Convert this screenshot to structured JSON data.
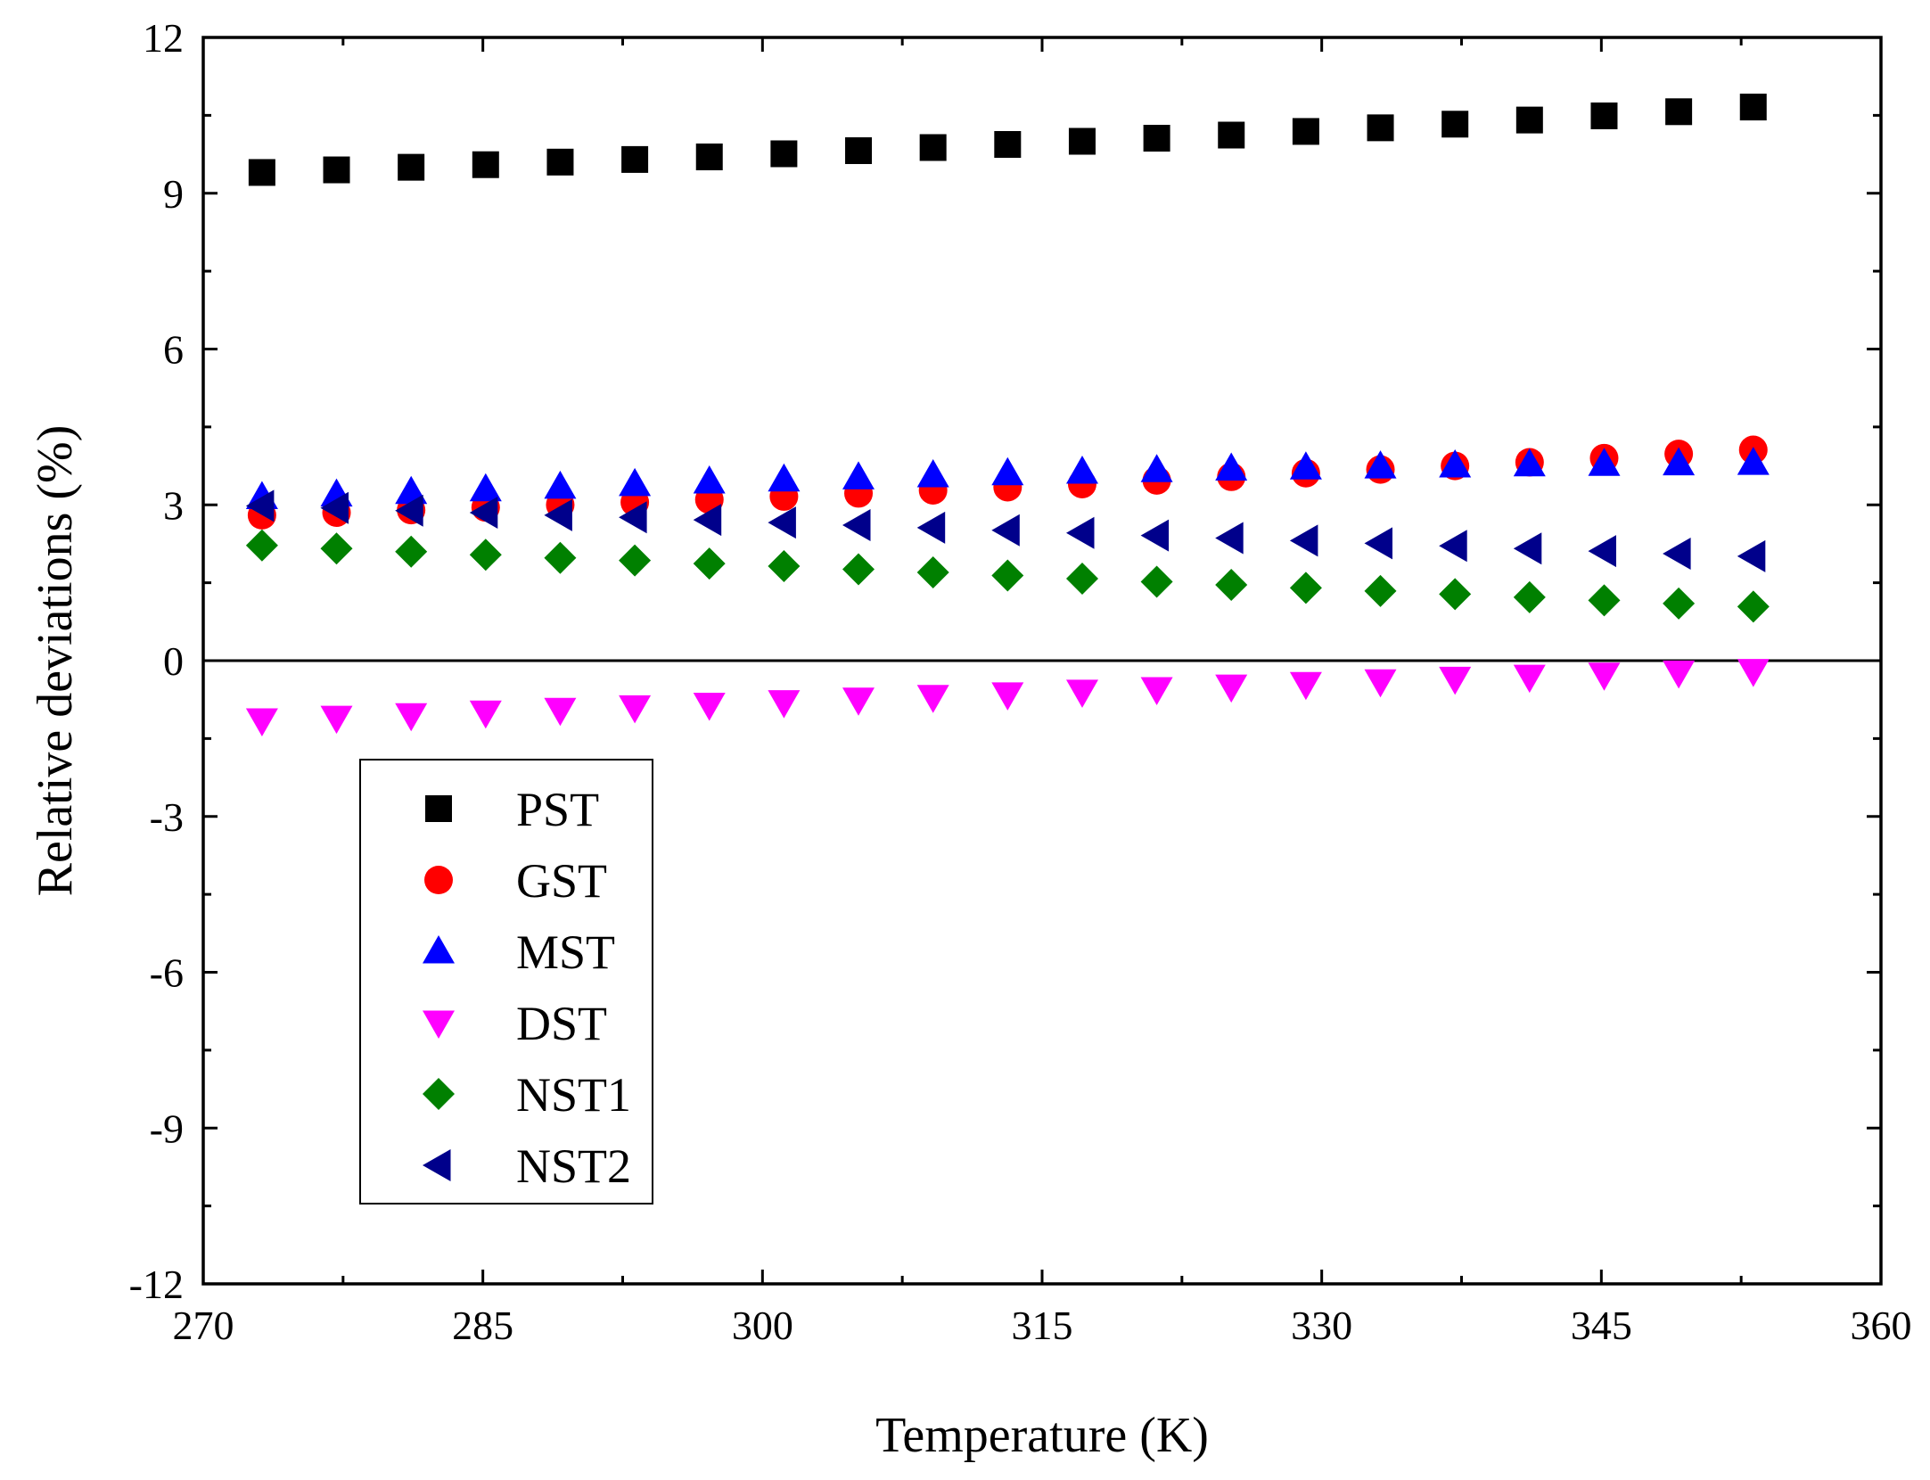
{
  "chart_data": {
    "type": "scatter",
    "title": "",
    "xlabel": "Temperature (K)",
    "ylabel": "Relative deviations (%)",
    "xlim": [
      270,
      360
    ],
    "ylim": [
      -12,
      12
    ],
    "xticks": [
      270,
      285,
      300,
      315,
      330,
      345,
      360
    ],
    "xtick_labels": [
      "270",
      "285",
      "300",
      "315",
      "330",
      "345",
      "360"
    ],
    "yticks": [
      -12,
      -9,
      -6,
      -3,
      0,
      3,
      6,
      9,
      12
    ],
    "ytick_labels": [
      "-12",
      "-9",
      "-6",
      "-3",
      "0",
      "3",
      "6",
      "9",
      "12"
    ],
    "zero_line": true,
    "legend_position": "bottom-left",
    "x": [
      273.15,
      277.15,
      281.15,
      285.15,
      289.15,
      293.15,
      297.15,
      301.15,
      305.15,
      309.15,
      313.15,
      317.15,
      321.15,
      325.15,
      329.15,
      333.15,
      337.15,
      341.15,
      345.15,
      349.15,
      353.15
    ],
    "series": [
      {
        "name": "PST",
        "marker": "square",
        "color": "#000000",
        "values": [
          9.4,
          9.45,
          9.5,
          9.55,
          9.6,
          9.65,
          9.7,
          9.76,
          9.82,
          9.88,
          9.94,
          10.0,
          10.06,
          10.12,
          10.19,
          10.26,
          10.33,
          10.41,
          10.49,
          10.57,
          10.66
        ]
      },
      {
        "name": "GST",
        "marker": "circle",
        "color": "#ff0000",
        "values": [
          2.8,
          2.85,
          2.9,
          2.95,
          3.0,
          3.05,
          3.1,
          3.16,
          3.22,
          3.28,
          3.34,
          3.4,
          3.47,
          3.54,
          3.61,
          3.68,
          3.75,
          3.82,
          3.9,
          3.98,
          4.06
        ]
      },
      {
        "name": "MST",
        "marker": "triangle-up",
        "color": "#0000ff",
        "values": [
          3.15,
          3.2,
          3.25,
          3.3,
          3.35,
          3.4,
          3.45,
          3.49,
          3.53,
          3.57,
          3.61,
          3.64,
          3.67,
          3.7,
          3.72,
          3.74,
          3.76,
          3.78,
          3.79,
          3.8,
          3.81
        ]
      },
      {
        "name": "DST",
        "marker": "triangle-down",
        "color": "#ff00ff",
        "values": [
          -1.15,
          -1.1,
          -1.05,
          -1.0,
          -0.95,
          -0.9,
          -0.85,
          -0.8,
          -0.75,
          -0.7,
          -0.65,
          -0.6,
          -0.55,
          -0.5,
          -0.45,
          -0.4,
          -0.35,
          -0.31,
          -0.27,
          -0.23,
          -0.2
        ]
      },
      {
        "name": "NST1",
        "marker": "diamond",
        "color": "#008000",
        "values": [
          2.22,
          2.16,
          2.1,
          2.04,
          1.98,
          1.93,
          1.87,
          1.82,
          1.76,
          1.7,
          1.64,
          1.58,
          1.52,
          1.46,
          1.4,
          1.34,
          1.28,
          1.22,
          1.16,
          1.1,
          1.04
        ]
      },
      {
        "name": "NST2",
        "marker": "triangle-left",
        "color": "#00008b",
        "values": [
          2.98,
          2.94,
          2.89,
          2.85,
          2.8,
          2.76,
          2.71,
          2.66,
          2.61,
          2.56,
          2.51,
          2.46,
          2.41,
          2.36,
          2.31,
          2.26,
          2.21,
          2.16,
          2.11,
          2.06,
          2.01
        ]
      }
    ]
  }
}
